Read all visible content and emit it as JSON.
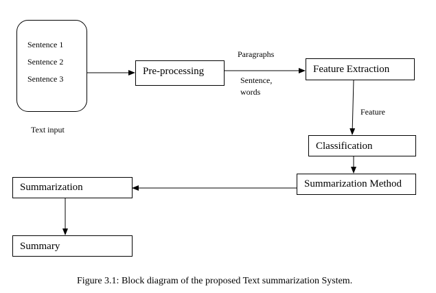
{
  "input": {
    "sentences": [
      "Sentence 1",
      "Sentence 2",
      "Sentence 3"
    ],
    "caption": "Text input"
  },
  "blocks": {
    "preprocessing": "Pre-processing",
    "feature_extraction": "Feature Extraction",
    "classification": "Classification",
    "summarization_method": "Summarization Method",
    "summarization": "Summarization",
    "summary": "Summary"
  },
  "edge_labels": {
    "paragraphs": "Paragraphs",
    "sentence_words": [
      "Sentence,",
      "words"
    ],
    "feature": "Feature"
  },
  "figure_caption": "Figure 3.1: Block diagram of the proposed Text summarization System.",
  "colors": {
    "stroke": "#000000",
    "background": "#ffffff"
  }
}
